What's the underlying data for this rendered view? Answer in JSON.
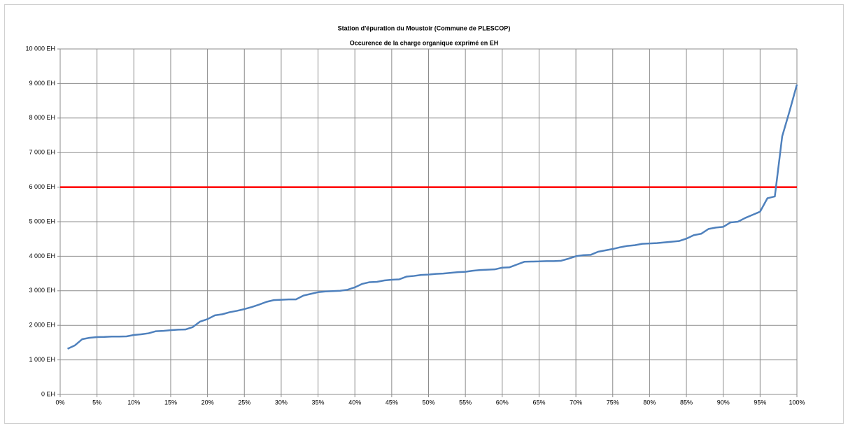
{
  "chart_data": {
    "type": "line",
    "title": "Station d'épuration du Moustoir (Commune de PLESCOP)",
    "subtitle": "Occurence de la charge organique exprimé en EH",
    "x": [
      1,
      2,
      3,
      4,
      5,
      6,
      7,
      8,
      9,
      10,
      11,
      12,
      13,
      14,
      15,
      16,
      17,
      18,
      19,
      20,
      21,
      22,
      23,
      24,
      25,
      26,
      27,
      28,
      29,
      30,
      31,
      32,
      33,
      34,
      35,
      36,
      37,
      38,
      39,
      40,
      41,
      42,
      43,
      44,
      45,
      46,
      47,
      48,
      49,
      50,
      51,
      52,
      53,
      54,
      55,
      56,
      57,
      58,
      59,
      60,
      61,
      62,
      63,
      64,
      65,
      66,
      67,
      68,
      69,
      70,
      71,
      72,
      73,
      74,
      75,
      76,
      77,
      78,
      79,
      80,
      81,
      82,
      83,
      84,
      85,
      86,
      87,
      88,
      89,
      90,
      91,
      92,
      93,
      94,
      95,
      96,
      97,
      98,
      99,
      100
    ],
    "values": [
      1320,
      1420,
      1600,
      1640,
      1660,
      1665,
      1675,
      1675,
      1680,
      1720,
      1740,
      1770,
      1830,
      1840,
      1860,
      1875,
      1880,
      1950,
      2110,
      2180,
      2290,
      2320,
      2380,
      2420,
      2470,
      2530,
      2600,
      2680,
      2730,
      2740,
      2750,
      2750,
      2860,
      2910,
      2960,
      2980,
      2990,
      3000,
      3030,
      3100,
      3200,
      3250,
      3260,
      3300,
      3320,
      3330,
      3410,
      3430,
      3460,
      3470,
      3490,
      3500,
      3520,
      3540,
      3550,
      3580,
      3600,
      3610,
      3620,
      3670,
      3680,
      3760,
      3840,
      3845,
      3850,
      3860,
      3860,
      3870,
      3930,
      4000,
      4030,
      4040,
      4130,
      4170,
      4210,
      4260,
      4300,
      4320,
      4360,
      4370,
      4380,
      4400,
      4420,
      4440,
      4510,
      4610,
      4650,
      4790,
      4830,
      4850,
      4980,
      5000,
      5110,
      5200,
      5290,
      5680,
      5730,
      7470,
      8200,
      8970
    ],
    "color": "#4f81bd",
    "reference_lines": [
      {
        "value": 6000,
        "color": "#ff0000"
      }
    ],
    "xlim": [
      0,
      100
    ],
    "xticks": [
      {
        "value": 0,
        "label": "0%"
      },
      {
        "value": 5,
        "label": "5%"
      },
      {
        "value": 10,
        "label": "10%"
      },
      {
        "value": 15,
        "label": "15%"
      },
      {
        "value": 20,
        "label": "20%"
      },
      {
        "value": 25,
        "label": "25%"
      },
      {
        "value": 30,
        "label": "30%"
      },
      {
        "value": 35,
        "label": "35%"
      },
      {
        "value": 40,
        "label": "40%"
      },
      {
        "value": 45,
        "label": "45%"
      },
      {
        "value": 50,
        "label": "50%"
      },
      {
        "value": 55,
        "label": "55%"
      },
      {
        "value": 60,
        "label": "60%"
      },
      {
        "value": 65,
        "label": "65%"
      },
      {
        "value": 70,
        "label": "70%"
      },
      {
        "value": 75,
        "label": "75%"
      },
      {
        "value": 80,
        "label": "80%"
      },
      {
        "value": 85,
        "label": "85%"
      },
      {
        "value": 90,
        "label": "90%"
      },
      {
        "value": 95,
        "label": "95%"
      },
      {
        "value": 100,
        "label": "100%"
      }
    ],
    "ylim": [
      0,
      10000
    ],
    "yticks": [
      {
        "value": 0,
        "label": "0 EH"
      },
      {
        "value": 1000,
        "label": "1 000 EH"
      },
      {
        "value": 2000,
        "label": "2 000 EH"
      },
      {
        "value": 3000,
        "label": "3 000 EH"
      },
      {
        "value": 4000,
        "label": "4 000 EH"
      },
      {
        "value": 5000,
        "label": "5 000 EH"
      },
      {
        "value": 6000,
        "label": "6 000 EH"
      },
      {
        "value": 7000,
        "label": "7 000 EH"
      },
      {
        "value": 8000,
        "label": "8 000 EH"
      },
      {
        "value": 9000,
        "label": "9 000 EH"
      },
      {
        "value": 10000,
        "label": "10 000 EH"
      }
    ],
    "grid": true
  }
}
